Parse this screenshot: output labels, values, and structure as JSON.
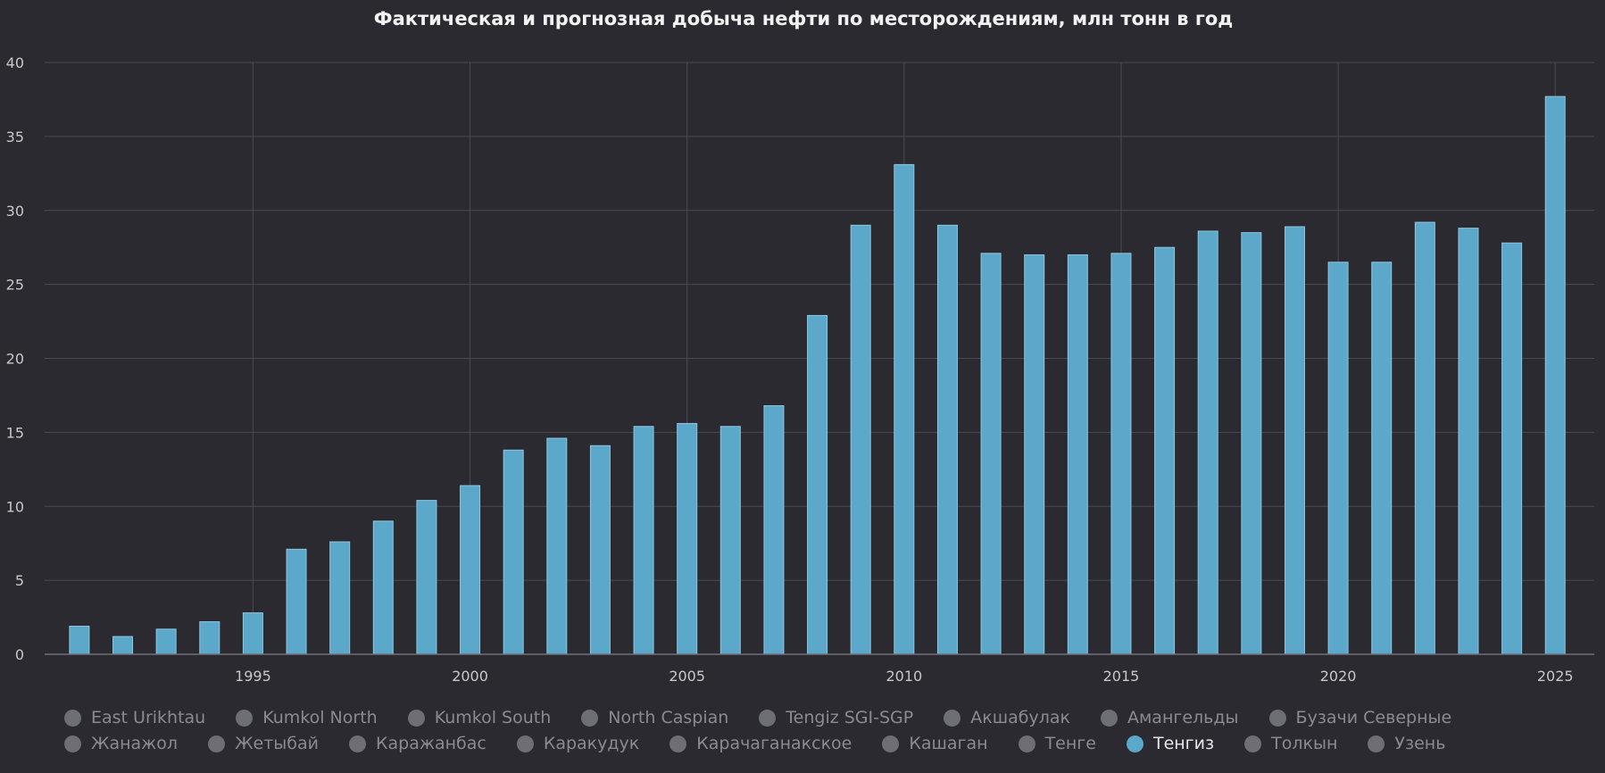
{
  "chart_data": {
    "type": "bar",
    "title": "Фактическая и прогнозная добыча нефти по месторождениям, млн тонн в год",
    "xlabel": "",
    "ylabel": "",
    "ylim": [
      0,
      40
    ],
    "y_ticks": [
      0,
      5,
      10,
      15,
      20,
      25,
      30,
      35,
      40
    ],
    "x_ticks": [
      1995,
      2000,
      2005,
      2010,
      2015,
      2020,
      2025
    ],
    "grid": true,
    "legend_position": "bottom",
    "bar_color": "#5ba8cb",
    "series": [
      {
        "name": "Тенгиз",
        "x": [
          1991,
          1992,
          1993,
          1994,
          1995,
          1996,
          1997,
          1998,
          1999,
          2000,
          2001,
          2002,
          2003,
          2004,
          2005,
          2006,
          2007,
          2008,
          2009,
          2010,
          2011,
          2012,
          2013,
          2014,
          2015,
          2016,
          2017,
          2018,
          2019,
          2020,
          2021,
          2022,
          2023,
          2024,
          2025
        ],
        "values": [
          1.9,
          1.2,
          1.7,
          2.2,
          2.8,
          7.1,
          7.6,
          9.0,
          10.4,
          11.4,
          13.8,
          14.6,
          14.1,
          15.4,
          15.6,
          15.4,
          16.8,
          22.9,
          29.0,
          33.1,
          29.0,
          27.1,
          27.0,
          27.0,
          27.1,
          27.5,
          28.6,
          28.5,
          28.9,
          26.5,
          26.5,
          29.2,
          28.8,
          27.8,
          37.7
        ]
      }
    ]
  },
  "legend": {
    "items": [
      "East Urikhtau",
      "Kumkol North",
      "Kumkol South",
      "North Caspian",
      "Tengiz SGI-SGP",
      "Акшабулак",
      "Амангельды",
      "Бузачи Северные",
      "Жанажол",
      "Жетыбай",
      "Каражанбас",
      "Каракудук",
      "Карачаганакское",
      "Кашаган",
      "Тенге",
      "Тенгиз",
      "Толкын",
      "Узень"
    ],
    "active": "Тенгиз",
    "active_color": "#5ba8cb",
    "inactive_color": "#6e6e75"
  }
}
